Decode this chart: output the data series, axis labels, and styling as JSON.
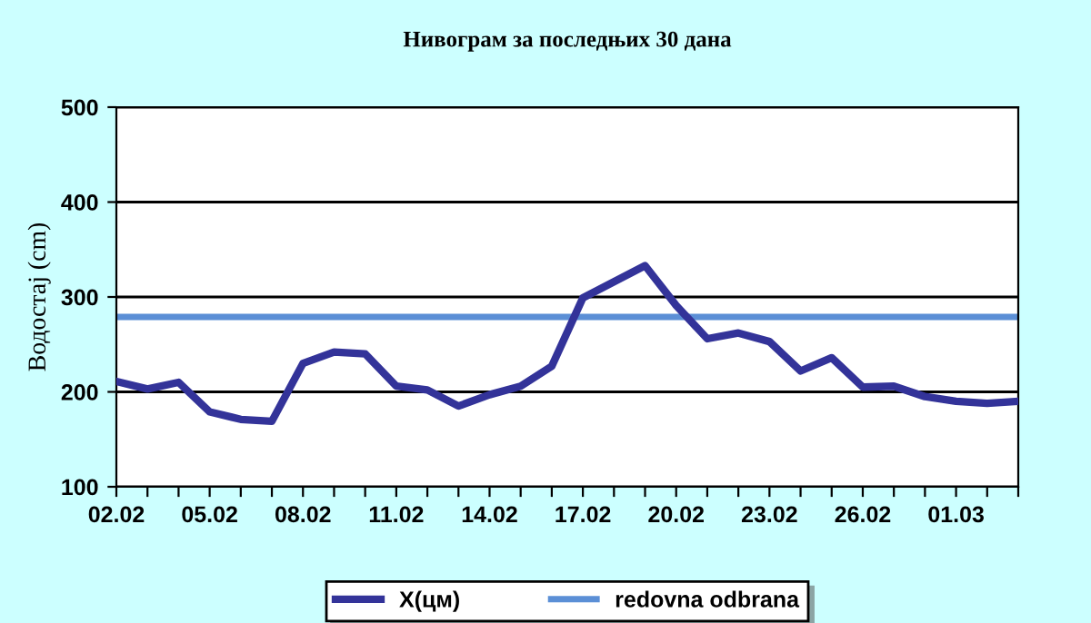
{
  "chart_data": {
    "type": "line",
    "title": "Нивограм за последњих 30 дана",
    "ylabel": "Водостај (cm)",
    "categories": [
      "02.02",
      null,
      null,
      "05.02",
      null,
      null,
      "08.02",
      null,
      null,
      "11.02",
      null,
      null,
      "14.02",
      null,
      null,
      "17.02",
      null,
      null,
      "20.02",
      null,
      null,
      "23.02",
      null,
      null,
      "26.02",
      null,
      null,
      "01.03",
      null,
      null
    ],
    "series": [
      {
        "name": "X(цм)",
        "color": "#333399",
        "values": [
          211,
          203,
          210,
          179,
          171,
          169,
          230,
          242,
          240,
          206,
          202,
          185,
          197,
          206,
          227,
          299,
          316,
          333,
          291,
          256,
          262,
          253,
          222,
          236,
          205,
          206,
          195,
          190,
          188,
          190
        ]
      }
    ],
    "ref_lines": [
      {
        "axis": "y",
        "value": 279,
        "label": "redovna odbrana",
        "color": "#5b8fd6"
      }
    ],
    "ylim": [
      100,
      500
    ],
    "yticks": [
      100,
      200,
      300,
      400,
      500
    ],
    "grid": "y",
    "legend": "bottom",
    "marker": "none",
    "line_style": "solid"
  }
}
